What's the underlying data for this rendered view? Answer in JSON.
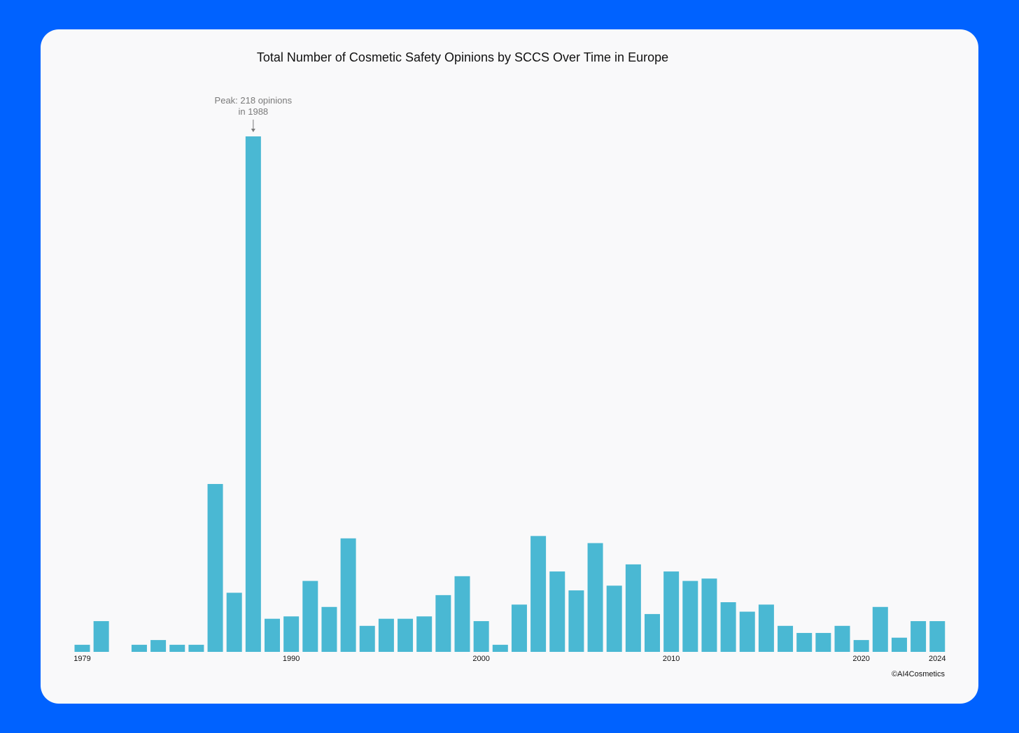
{
  "colors": {
    "background": "#0062ff",
    "card": "#f9f9fa",
    "bar": "#4ab8d3",
    "annotation": "#7a7a7a"
  },
  "chart_data": {
    "type": "bar",
    "title": "Total Number of Cosmetic Safety Opinions by SCCS Over Time in Europe",
    "xlabel": "",
    "ylabel": "",
    "ylim": [
      0,
      218
    ],
    "grid": false,
    "x_tick_labels": [
      "1979",
      "1990",
      "2000",
      "2010",
      "2020",
      "2024"
    ],
    "categories": [
      1979,
      1980,
      1981,
      1982,
      1983,
      1984,
      1985,
      1986,
      1987,
      1988,
      1989,
      1990,
      1991,
      1992,
      1993,
      1994,
      1995,
      1996,
      1997,
      1998,
      1999,
      2000,
      2001,
      2002,
      2003,
      2004,
      2005,
      2006,
      2007,
      2008,
      2009,
      2010,
      2011,
      2012,
      2013,
      2014,
      2015,
      2016,
      2017,
      2018,
      2019,
      2020,
      2021,
      2022,
      2023,
      2024
    ],
    "values": [
      3,
      13,
      0,
      3,
      5,
      3,
      3,
      71,
      25,
      218,
      14,
      15,
      30,
      19,
      48,
      11,
      14,
      14,
      15,
      24,
      32,
      13,
      3,
      20,
      49,
      34,
      26,
      46,
      28,
      37,
      16,
      34,
      30,
      31,
      21,
      17,
      20,
      11,
      8,
      8,
      11,
      5,
      19,
      6,
      13,
      13
    ],
    "annotation": {
      "text_line1": "Peak: 218 opinions",
      "text_line2": "in 1988",
      "category": 1988
    }
  },
  "footer": {
    "credit": "©AI4Cosmetics"
  }
}
